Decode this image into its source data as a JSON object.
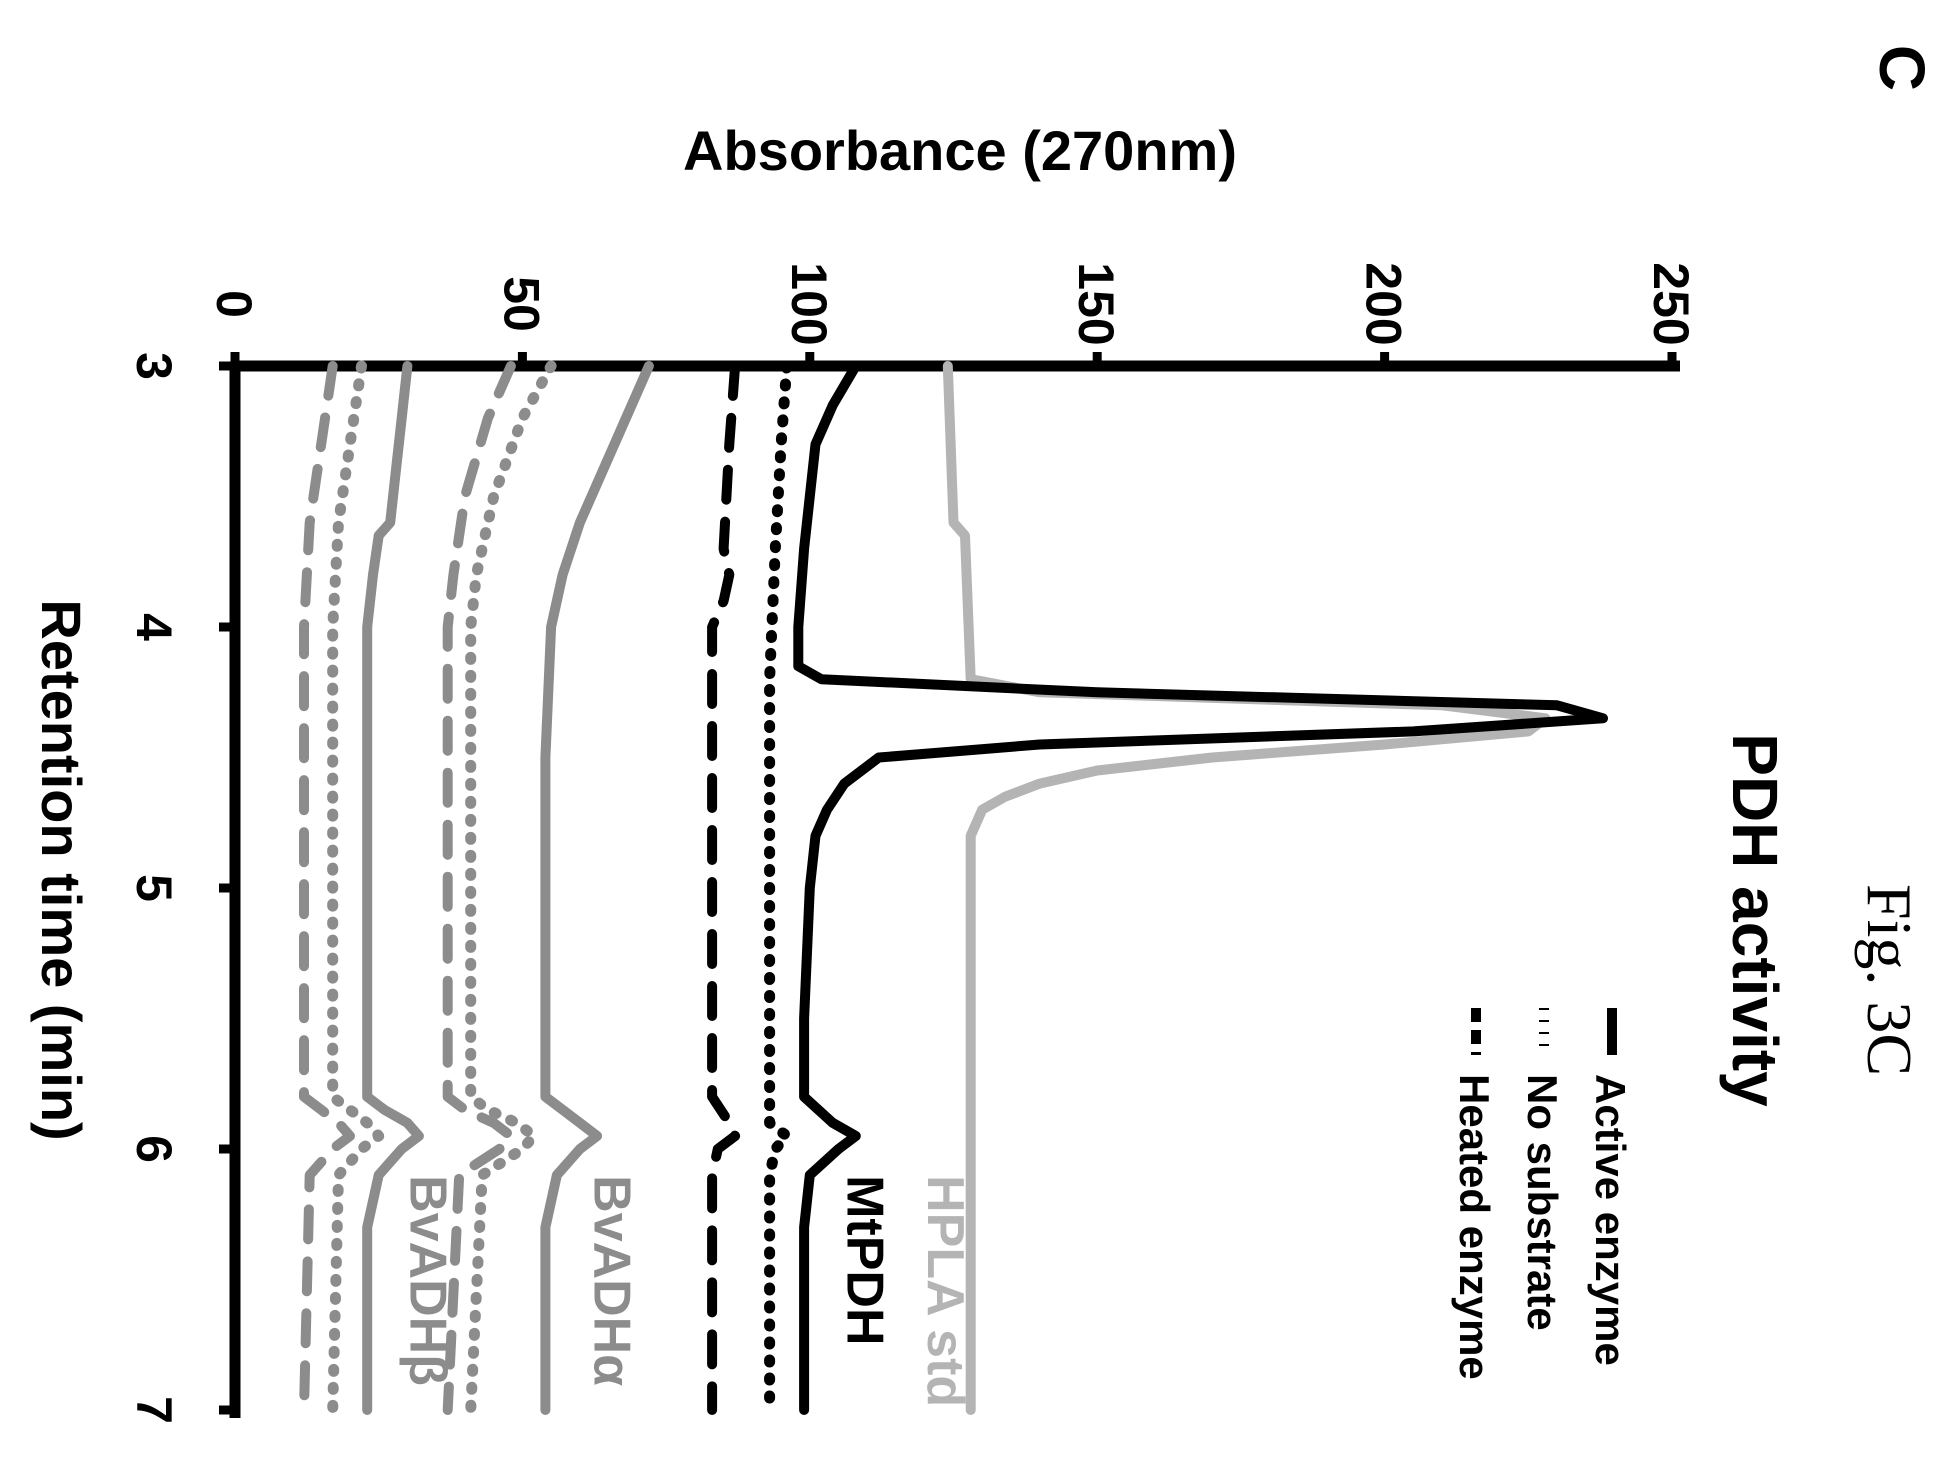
{
  "figure_caption": "Fig. 3C",
  "panel_letter": "C",
  "colors": {
    "black": "#000000",
    "dark_gray": "#707070",
    "mid_gray": "#8c8c8c",
    "light_gray": "#b4b4b4"
  },
  "chart_data": {
    "type": "line",
    "title": "PDH activity",
    "xlabel": "Retention time (min)",
    "ylabel": "Absorbance (270nm)",
    "xlim": [
      3,
      7
    ],
    "ylim": [
      0,
      250
    ],
    "x_ticks": [
      "3",
      "4",
      "5",
      "6",
      "7"
    ],
    "y_ticks": [
      "0",
      "50",
      "100",
      "150",
      "200",
      "250"
    ],
    "orientation": "rotated 90 degrees clockwise",
    "legend": {
      "placement": "top-right",
      "entries": [
        {
          "label": "Active enzyme",
          "style": "solid"
        },
        {
          "label": "No substrate",
          "style": "dotted"
        },
        {
          "label": "Heated enzyme",
          "style": "dashed"
        }
      ]
    },
    "groups": [
      {
        "label": "HPLA std",
        "color": "#b4b4b4"
      },
      {
        "label": "MtPDH",
        "color": "#000000"
      },
      {
        "label": "BvADHα",
        "color": "#8c8c8c"
      },
      {
        "label": "BvADHβ",
        "color": "#8c8c8c"
      }
    ],
    "series": [
      {
        "group": "HPLA std",
        "style": "solid",
        "color": "#b4b4b4",
        "x": [
          3.0,
          3.6,
          3.65,
          4.2,
          4.25,
          4.3,
          4.35,
          4.4,
          4.45,
          4.5,
          4.55,
          4.6,
          4.65,
          4.7,
          4.8,
          5.0,
          7.0
        ],
        "y": [
          124,
          125,
          127,
          128,
          140,
          210,
          228,
          225,
          200,
          170,
          150,
          140,
          134,
          130,
          128,
          128,
          128
        ]
      },
      {
        "group": "MtPDH",
        "style": "solid",
        "color": "#000000",
        "x": [
          3.0,
          3.15,
          3.3,
          3.5,
          3.7,
          4.0,
          4.15,
          4.2,
          4.25,
          4.3,
          4.35,
          4.4,
          4.45,
          4.5,
          4.6,
          4.7,
          4.8,
          5.0,
          5.5,
          5.8,
          5.9,
          5.95,
          6.0,
          6.1,
          6.3,
          7.0
        ],
        "y": [
          108,
          104,
          101,
          100,
          99,
          98,
          98,
          102,
          150,
          230,
          238,
          205,
          140,
          112,
          106,
          103,
          101,
          100,
          99,
          99,
          104,
          108,
          105,
          100,
          99,
          99
        ]
      },
      {
        "group": "MtPDH",
        "style": "dotted",
        "color": "#000000",
        "x": [
          3.0,
          3.3,
          3.7,
          4.2,
          5.0,
          5.9,
          5.95,
          6.0,
          6.1,
          7.0
        ],
        "y": [
          96,
          95,
          94,
          93,
          93,
          93,
          96,
          94,
          93,
          93
        ]
      },
      {
        "group": "MtPDH",
        "style": "dashed",
        "color": "#000000",
        "x": [
          3.0,
          3.3,
          3.7,
          3.8,
          3.9,
          4.0,
          5.0,
          5.8,
          5.9,
          5.95,
          6.0,
          6.1,
          6.4,
          7.0
        ],
        "y": [
          87,
          86,
          85,
          86,
          85,
          83,
          83,
          83,
          86,
          87,
          84,
          83,
          83,
          83
        ]
      },
      {
        "group": "BvADHα",
        "style": "solid",
        "color": "#8c8c8c",
        "x": [
          3.0,
          3.2,
          3.4,
          3.6,
          3.8,
          4.0,
          4.5,
          5.0,
          5.8,
          5.85,
          5.9,
          5.95,
          6.0,
          6.1,
          6.3,
          7.0
        ],
        "y": [
          72,
          68,
          64,
          60,
          57,
          55,
          54,
          54,
          54,
          57,
          60,
          63,
          60,
          56,
          54,
          54
        ]
      },
      {
        "group": "BvADHα",
        "style": "dotted",
        "color": "#8c8c8c",
        "x": [
          3.0,
          3.2,
          3.5,
          3.8,
          4.0,
          5.0,
          5.8,
          5.85,
          5.9,
          5.95,
          6.0,
          6.1,
          7.0
        ],
        "y": [
          55,
          50,
          45,
          42,
          41,
          41,
          41,
          44,
          49,
          52,
          50,
          43,
          41
        ]
      },
      {
        "group": "BvADHα",
        "style": "dashed",
        "color": "#8c8c8c",
        "x": [
          3.0,
          3.2,
          3.5,
          3.8,
          4.0,
          5.0,
          5.8,
          5.85,
          5.9,
          5.95,
          6.0,
          6.1,
          7.0
        ],
        "y": [
          48,
          44,
          40,
          38,
          37,
          37,
          37,
          40,
          45,
          48,
          46,
          39,
          37
        ]
      },
      {
        "group": "BvADHβ",
        "style": "solid",
        "color": "#8c8c8c",
        "x": [
          3.0,
          3.2,
          3.4,
          3.6,
          3.65,
          3.8,
          4.0,
          5.0,
          5.8,
          5.85,
          5.9,
          5.95,
          6.0,
          6.1,
          6.3,
          7.0
        ],
        "y": [
          30,
          29,
          28,
          27,
          25,
          24,
          23,
          23,
          23,
          26,
          30,
          32,
          29,
          25,
          23,
          23
        ]
      },
      {
        "group": "BvADHβ",
        "style": "dotted",
        "color": "#8c8c8c",
        "x": [
          3.0,
          3.3,
          3.6,
          4.0,
          5.0,
          5.8,
          5.85,
          5.9,
          5.95,
          6.0,
          6.1,
          7.0
        ],
        "y": [
          22,
          20,
          18,
          17,
          17,
          17,
          20,
          23,
          25,
          22,
          18,
          17
        ]
      },
      {
        "group": "BvADHβ",
        "style": "dashed",
        "color": "#8c8c8c",
        "x": [
          3.0,
          3.3,
          3.6,
          4.0,
          5.0,
          5.8,
          5.85,
          5.9,
          5.95,
          6.0,
          6.1,
          7.0
        ],
        "y": [
          17,
          15,
          13,
          12,
          12,
          12,
          15,
          18,
          20,
          17,
          13,
          12
        ]
      }
    ]
  }
}
